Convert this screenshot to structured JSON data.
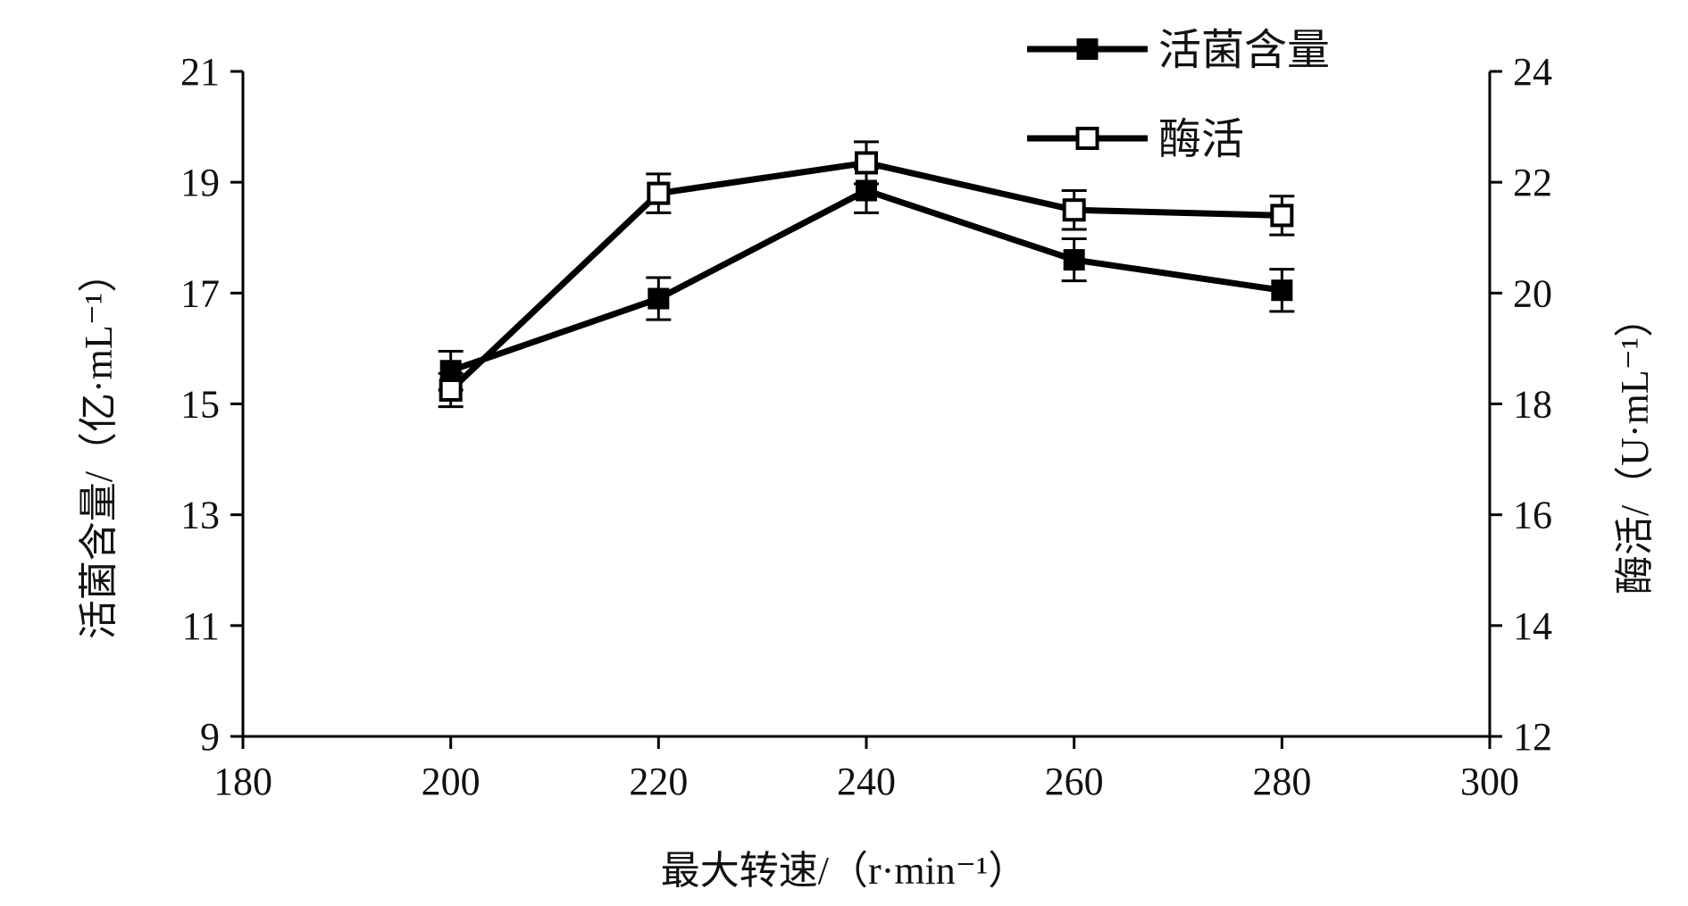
{
  "chart_data": {
    "type": "line",
    "x": [
      200,
      220,
      240,
      260,
      280
    ],
    "xlim": [
      180,
      300
    ],
    "xticks": [
      "180",
      "200",
      "220",
      "240",
      "260",
      "280",
      "300"
    ],
    "xlabel": "最大转速/（r·min⁻¹）",
    "ylabel_left": "活菌含量/（亿·mL⁻¹）",
    "ylabel_right": "酶活/（U·mL⁻¹）",
    "ylim_left": [
      9,
      21
    ],
    "ylim_right": [
      12,
      24
    ],
    "yticks_left": [
      "9",
      "11",
      "13",
      "15",
      "17",
      "19",
      "21"
    ],
    "yticks_right": [
      "12",
      "14",
      "16",
      "18",
      "20",
      "22",
      "24"
    ],
    "grid": false,
    "legend_position": "top-right",
    "series": [
      {
        "name": "活菌含量",
        "axis": "left",
        "marker": "filled-square",
        "values": [
          15.6,
          16.9,
          18.85,
          17.6,
          17.05
        ],
        "errors": [
          0.35,
          0.38,
          0.4,
          0.38,
          0.38
        ]
      },
      {
        "name": "酶活",
        "axis": "right",
        "marker": "open-square",
        "values": [
          18.25,
          21.8,
          22.35,
          21.5,
          21.4
        ],
        "errors": [
          0.3,
          0.35,
          0.38,
          0.35,
          0.35
        ]
      }
    ],
    "colors": {
      "line": "#000000",
      "marker_fill_open": "#ffffff"
    }
  }
}
